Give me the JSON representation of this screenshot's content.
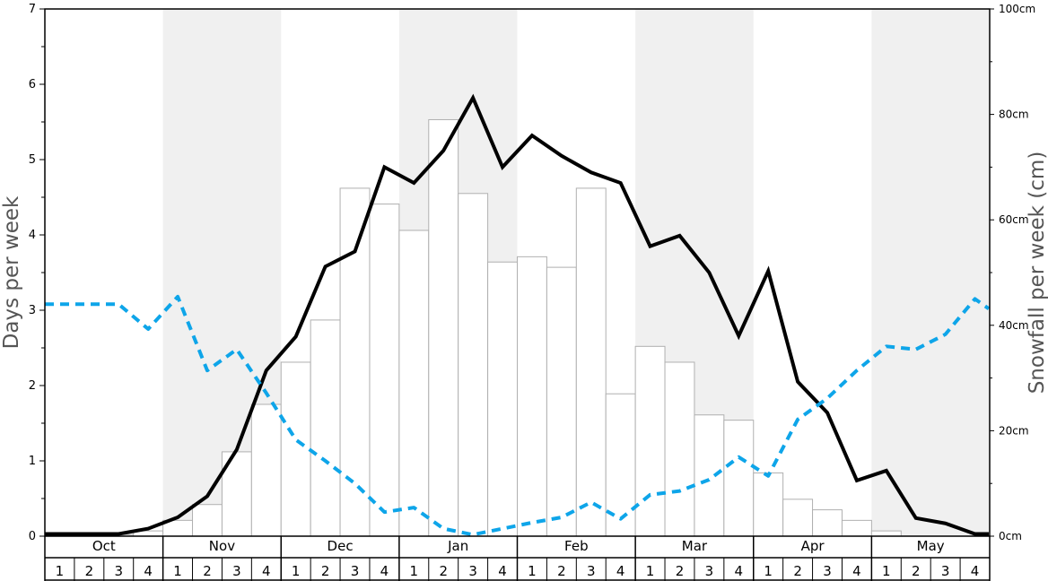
{
  "chart_data": {
    "type": "bar",
    "ylabel_left": "Days per week",
    "ylabel_right": "Snowfall per week (cm)",
    "ylim_left": [
      0,
      7
    ],
    "ylim_right": [
      0,
      100
    ],
    "yticks_left": [
      "0",
      "1",
      "2",
      "3",
      "4",
      "5",
      "6",
      "7"
    ],
    "yticks_right": [
      "0cm",
      "20cm",
      "40cm",
      "60cm",
      "80cm",
      "100cm"
    ],
    "months": [
      "Oct",
      "Nov",
      "Dec",
      "Jan",
      "Feb",
      "Mar",
      "Apr",
      "May"
    ],
    "weeks": [
      "1",
      "2",
      "3",
      "4"
    ],
    "shaded_months": [
      "Nov",
      "Jan",
      "Mar",
      "May"
    ],
    "grid": false,
    "colors": {
      "bar_fill": "#ffffff",
      "bar_stroke": "#b0b0b0",
      "solid_line": "#000000",
      "dashed_line": "#0ea5e9",
      "month_shade": "#f0f0f0"
    },
    "series": [
      {
        "type": "bar",
        "axis": "right",
        "values": [
          0.1,
          0.2,
          0.3,
          1.0,
          3.0,
          6.0,
          16.0,
          25.0,
          33.0,
          41.0,
          66.0,
          63.0,
          58.0,
          79.0,
          65.0,
          52.0,
          53.0,
          51.0,
          66.0,
          27.0,
          36.0,
          33.0,
          23.0,
          22.0,
          12.0,
          7.0,
          5.0,
          3.0,
          1.0,
          0.0,
          0.0,
          0.0
        ]
      },
      {
        "type": "line",
        "style": "solid",
        "axis": "left",
        "values": [
          0.03,
          0.03,
          0.03,
          0.1,
          0.25,
          0.53,
          1.15,
          2.2,
          2.65,
          3.58,
          3.78,
          4.9,
          4.69,
          5.12,
          5.82,
          4.9,
          5.32,
          5.05,
          4.83,
          4.69,
          3.85,
          3.99,
          3.5,
          2.66,
          3.52,
          2.05,
          1.64,
          0.74,
          0.87,
          0.24,
          0.17,
          0.03
        ]
      },
      {
        "type": "line",
        "style": "dashed",
        "axis": "left",
        "values": [
          3.08,
          3.08,
          3.08,
          2.75,
          3.18,
          2.2,
          2.48,
          1.9,
          1.28,
          1.0,
          0.7,
          0.32,
          0.38,
          0.1,
          0.02,
          0.1,
          0.18,
          0.25,
          0.45,
          0.23,
          0.55,
          0.6,
          0.75,
          1.05,
          0.8,
          1.55,
          1.83,
          2.2,
          2.52,
          2.48,
          2.68,
          3.15
        ]
      }
    ]
  }
}
